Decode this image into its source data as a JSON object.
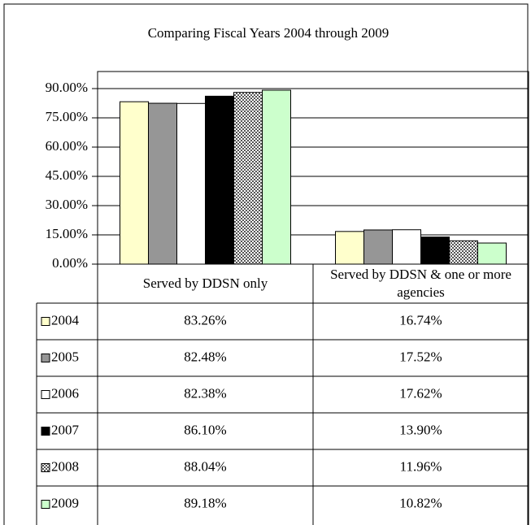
{
  "chart_data": {
    "type": "bar",
    "title": "Comparing Fiscal Years 2004 through 2009",
    "categories": [
      "Served by DDSN only",
      "Served by DDSN & one or more agencies"
    ],
    "series": [
      {
        "name": "2004",
        "color": "#ffffcc",
        "values": [
          83.26,
          16.74
        ],
        "value_labels": [
          "83.26%",
          "16.74%"
        ]
      },
      {
        "name": "2005",
        "color": "#969696",
        "values": [
          82.48,
          17.52
        ],
        "value_labels": [
          "82.48%",
          "17.52%"
        ]
      },
      {
        "name": "2006",
        "color": "#ffffff",
        "values": [
          82.38,
          17.62
        ],
        "value_labels": [
          "82.38%",
          "17.62%"
        ]
      },
      {
        "name": "2007",
        "color": "#000000",
        "values": [
          86.1,
          13.9
        ],
        "value_labels": [
          "86.10%",
          "13.90%"
        ]
      },
      {
        "name": "2008",
        "color": "#555555",
        "hatch": true,
        "values": [
          88.04,
          11.96
        ],
        "value_labels": [
          "88.04%",
          "11.96%"
        ]
      },
      {
        "name": "2009",
        "color": "#ccffcc",
        "values": [
          89.18,
          10.82
        ],
        "value_labels": [
          "89.18%",
          "10.82%"
        ]
      }
    ],
    "ylim": [
      0,
      90
    ],
    "yticks": [
      {
        "value": 0,
        "label": "0.00%"
      },
      {
        "value": 15,
        "label": "15.00%"
      },
      {
        "value": 30,
        "label": "30.00%"
      },
      {
        "value": 45,
        "label": "45.00%"
      },
      {
        "value": 60,
        "label": "60.00%"
      },
      {
        "value": 75,
        "label": "75.00%"
      },
      {
        "value": 90,
        "label": "90.00%"
      }
    ],
    "grid": true
  }
}
